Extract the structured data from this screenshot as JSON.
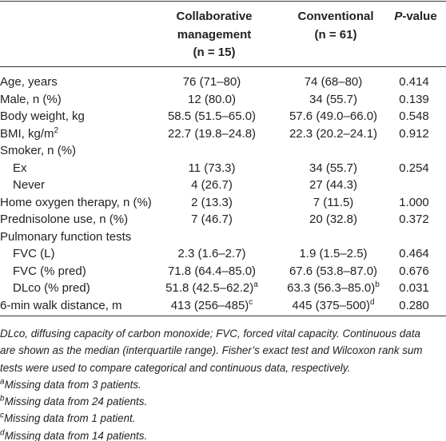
{
  "table": {
    "header": [
      {
        "lines": [
          "Collaborative",
          "management",
          "(n = 15)"
        ]
      },
      {
        "lines": [
          "Conventional",
          "(n = 61)"
        ]
      },
      {
        "italic": "P",
        "text": "-value"
      }
    ],
    "rows": [
      {
        "label": "Age, years",
        "cells": [
          "76 (71–80)",
          "74 (68–80)"
        ],
        "p": "0.414"
      },
      {
        "label": "Male, n (%)",
        "cells": [
          "12 (80.0)",
          "34 (55.7)"
        ],
        "p": "0.139"
      },
      {
        "label": "Body weight, kg",
        "cells": [
          "58.5 (51.5–65.0)",
          "57.6 (49.0–66.0)"
        ],
        "p": "0.548"
      },
      {
        "label": "BMI, kg/m",
        "label_sup": "2",
        "cells": [
          "22.7 (19.8–24.8)",
          "22.3 (20.2–24.1)"
        ],
        "p": "0.912"
      },
      {
        "label": "Smoker, n (%)"
      },
      {
        "label": "Ex",
        "indent": true,
        "cells": [
          "11 (73.3)",
          "34 (55.7)"
        ],
        "p": "0.254"
      },
      {
        "label": "Never",
        "indent": true,
        "cells": [
          "4 (26.7)",
          "27 (44.3)"
        ]
      },
      {
        "label": "Home oxygen therapy, n (%)",
        "cells": [
          "2 (13.3)",
          "7 (11.5)"
        ],
        "p": "1.000"
      },
      {
        "label": "Prednisolone use, n (%)",
        "cells": [
          "7 (46.7)",
          "20 (32.8)"
        ],
        "p": "0.372"
      },
      {
        "label": "Pulmonary function tests"
      },
      {
        "label": "FVC (L)",
        "indent": true,
        "cells": [
          "2.3 (1.6–2.7)",
          "1.9 (1.5–2.5)"
        ],
        "p": "0.464"
      },
      {
        "label": "FVC (% pred)",
        "indent": true,
        "cells": [
          "71.8 (64.4–85.0)",
          "67.6 (53.8–87.0)"
        ],
        "p": "0.676"
      },
      {
        "label": "DLco (% pred)",
        "indent": true,
        "cells": [
          {
            "text": "51.8 (42.5–62.2)",
            "sup": "a"
          },
          {
            "text": "63.3 (56.3–85.0)",
            "sup": "b"
          }
        ],
        "p": "0.031"
      },
      {
        "label": "6-min walk distance, m",
        "cells": [
          {
            "text": "413 (256–485)",
            "sup": "c"
          },
          {
            "text": "445 (375–500)",
            "sup": "d"
          }
        ],
        "p": "0.280"
      }
    ],
    "note": "DLco, diffusing capacity of carbon monoxide; FVC, forced vital capacity. Continuous data are shown as the median (interquartile range). Fisher’s exact test and Wilcoxon rank sum tests were used to compare categorical and continuous data, respectively.",
    "footnotes": [
      {
        "mark": "a",
        "text": "Missing data from 3 patients."
      },
      {
        "mark": "b",
        "text": "Missing data from 24 patients."
      },
      {
        "mark": "c",
        "text": "Missing data from 1 patient."
      },
      {
        "mark": "d",
        "text": "Missing data from 14 patients."
      }
    ]
  }
}
